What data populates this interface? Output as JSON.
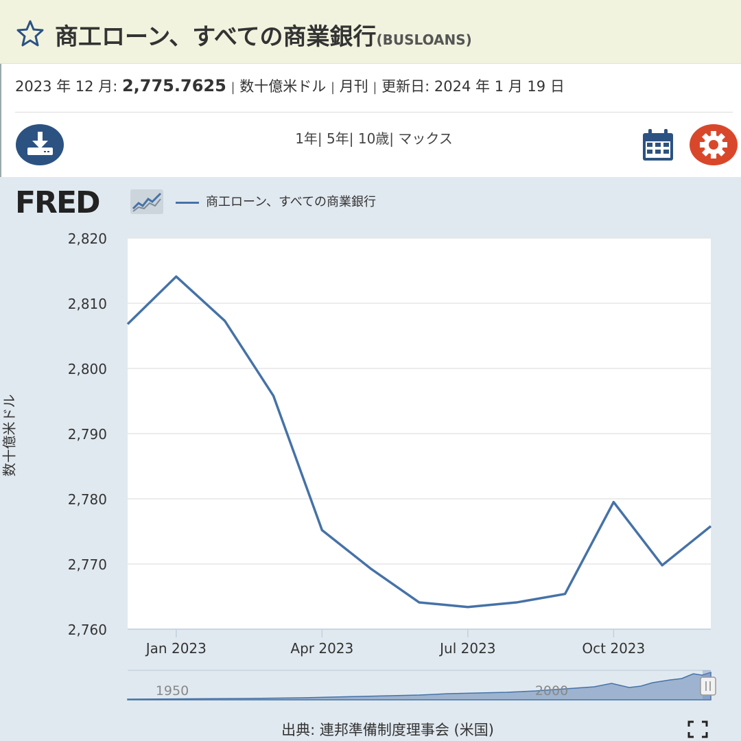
{
  "header": {
    "title": "商工ローン、すべての商業銀行",
    "series_id": "(BUSLOANS)",
    "star_icon": "star-icon"
  },
  "observation": {
    "period": "2023 年 12 月:",
    "value": "2,775.7625",
    "sep1": "|",
    "units": "数十億米ドル",
    "sep2": "|",
    "frequency": "月刊",
    "sep3": "|",
    "updated_label": "更新日:",
    "updated_date": "2024 年 1 月 19 日"
  },
  "toolbar": {
    "download_icon": "download-icon",
    "range_1y": "1年|",
    "range_5y": "5年|",
    "range_10y": "10歳|",
    "range_max": "マックス",
    "calendar_icon": "calendar-icon",
    "settings_icon": "gear-icon"
  },
  "chart_header": {
    "logo": "FRED",
    "legend_label": "商工ローン、すべての商業銀行",
    "y_axis_label": "数十億米ドル"
  },
  "source": "出典: 連邦準備制度理事会 (米国)",
  "colors": {
    "title_bg": "#f1f3de",
    "chart_bg": "#e1e9f0",
    "series": "#4572a7",
    "gear": "#d9472b",
    "button_blue": "#2c5282"
  },
  "chart_data": {
    "type": "line",
    "title": "",
    "xlabel": "",
    "ylabel": "数十億米ドル",
    "x": [
      "2022-12",
      "2023-01",
      "2023-02",
      "2023-03",
      "2023-04",
      "2023-05",
      "2023-06",
      "2023-07",
      "2023-08",
      "2023-09",
      "2023-10",
      "2023-11",
      "2023-12"
    ],
    "series": [
      {
        "name": "商工ローン、すべての商業銀行",
        "values": [
          2806.8,
          2814.1,
          2807.3,
          2795.8,
          2775.2,
          2769.3,
          2764.1,
          2763.4,
          2764.1,
          2765.4,
          2779.5,
          2769.8,
          2775.8
        ]
      }
    ],
    "ylim": [
      2760,
      2820
    ],
    "yticks": [
      "2,760",
      "2,770",
      "2,780",
      "2,790",
      "2,800",
      "2,810",
      "2,820"
    ],
    "xticks": [
      "Jan 2023",
      "Apr 2023",
      "Jul 2023",
      "Oct 2023"
    ],
    "navigator": {
      "labels": [
        "1950",
        "2000"
      ]
    },
    "grid": true,
    "legend": "top-left"
  }
}
